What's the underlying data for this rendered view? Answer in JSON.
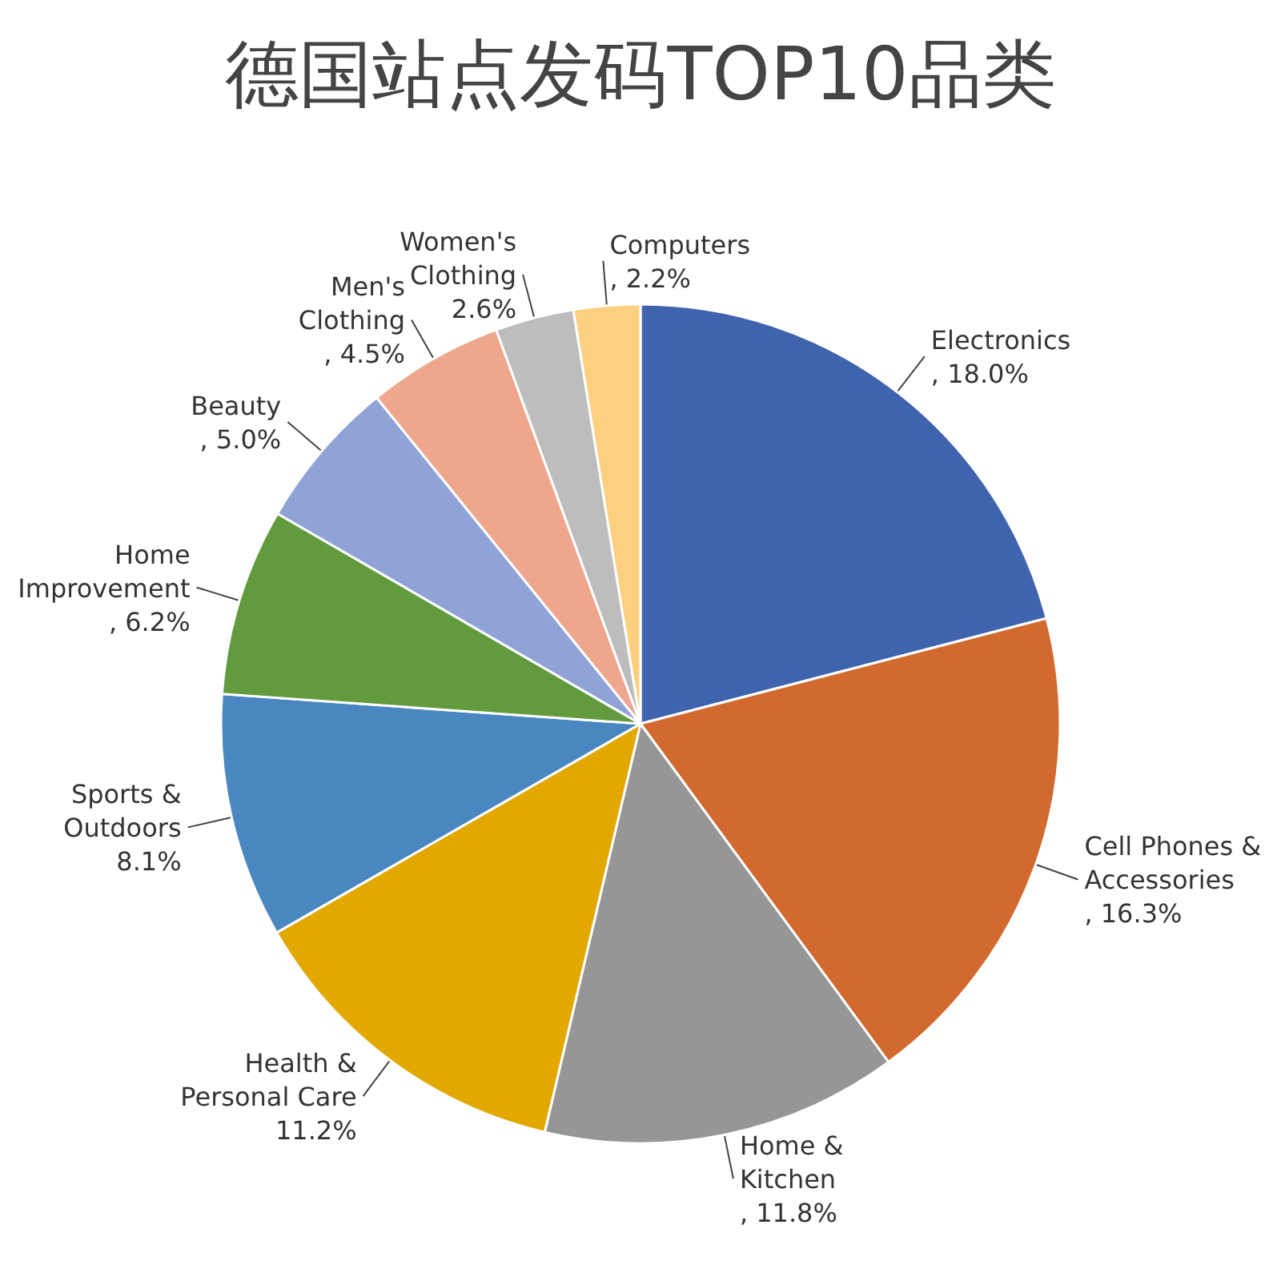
{
  "chart_data": {
    "type": "pie",
    "title": "德国站点发码TOP10品类",
    "categories": [
      "Electronics",
      "Cell Phones & Accessories",
      "Home & Kitchen",
      "Health & Personal Care",
      "Sports & Outdoors",
      "Home Improvement",
      "Beauty",
      "Men's Clothing",
      "Women's Clothing",
      "Computers"
    ],
    "values": [
      18.0,
      16.3,
      11.8,
      11.2,
      8.1,
      6.2,
      5.0,
      4.5,
      2.6,
      2.2
    ],
    "value_labels": [
      ", 18.0%",
      ", 16.3%",
      ", 11.8%",
      "11.2%",
      "8.1%",
      ", 6.2%",
      ", 5.0%",
      ", 4.5%",
      "2.6%",
      ", 2.2%"
    ],
    "colors": [
      "#3f64ad",
      "#d2692e",
      "#969696",
      "#e2a800",
      "#4a87c0",
      "#629b3e",
      "#8fa3d6",
      "#eea78c",
      "#bdbdbd",
      "#fdd07f"
    ]
  }
}
